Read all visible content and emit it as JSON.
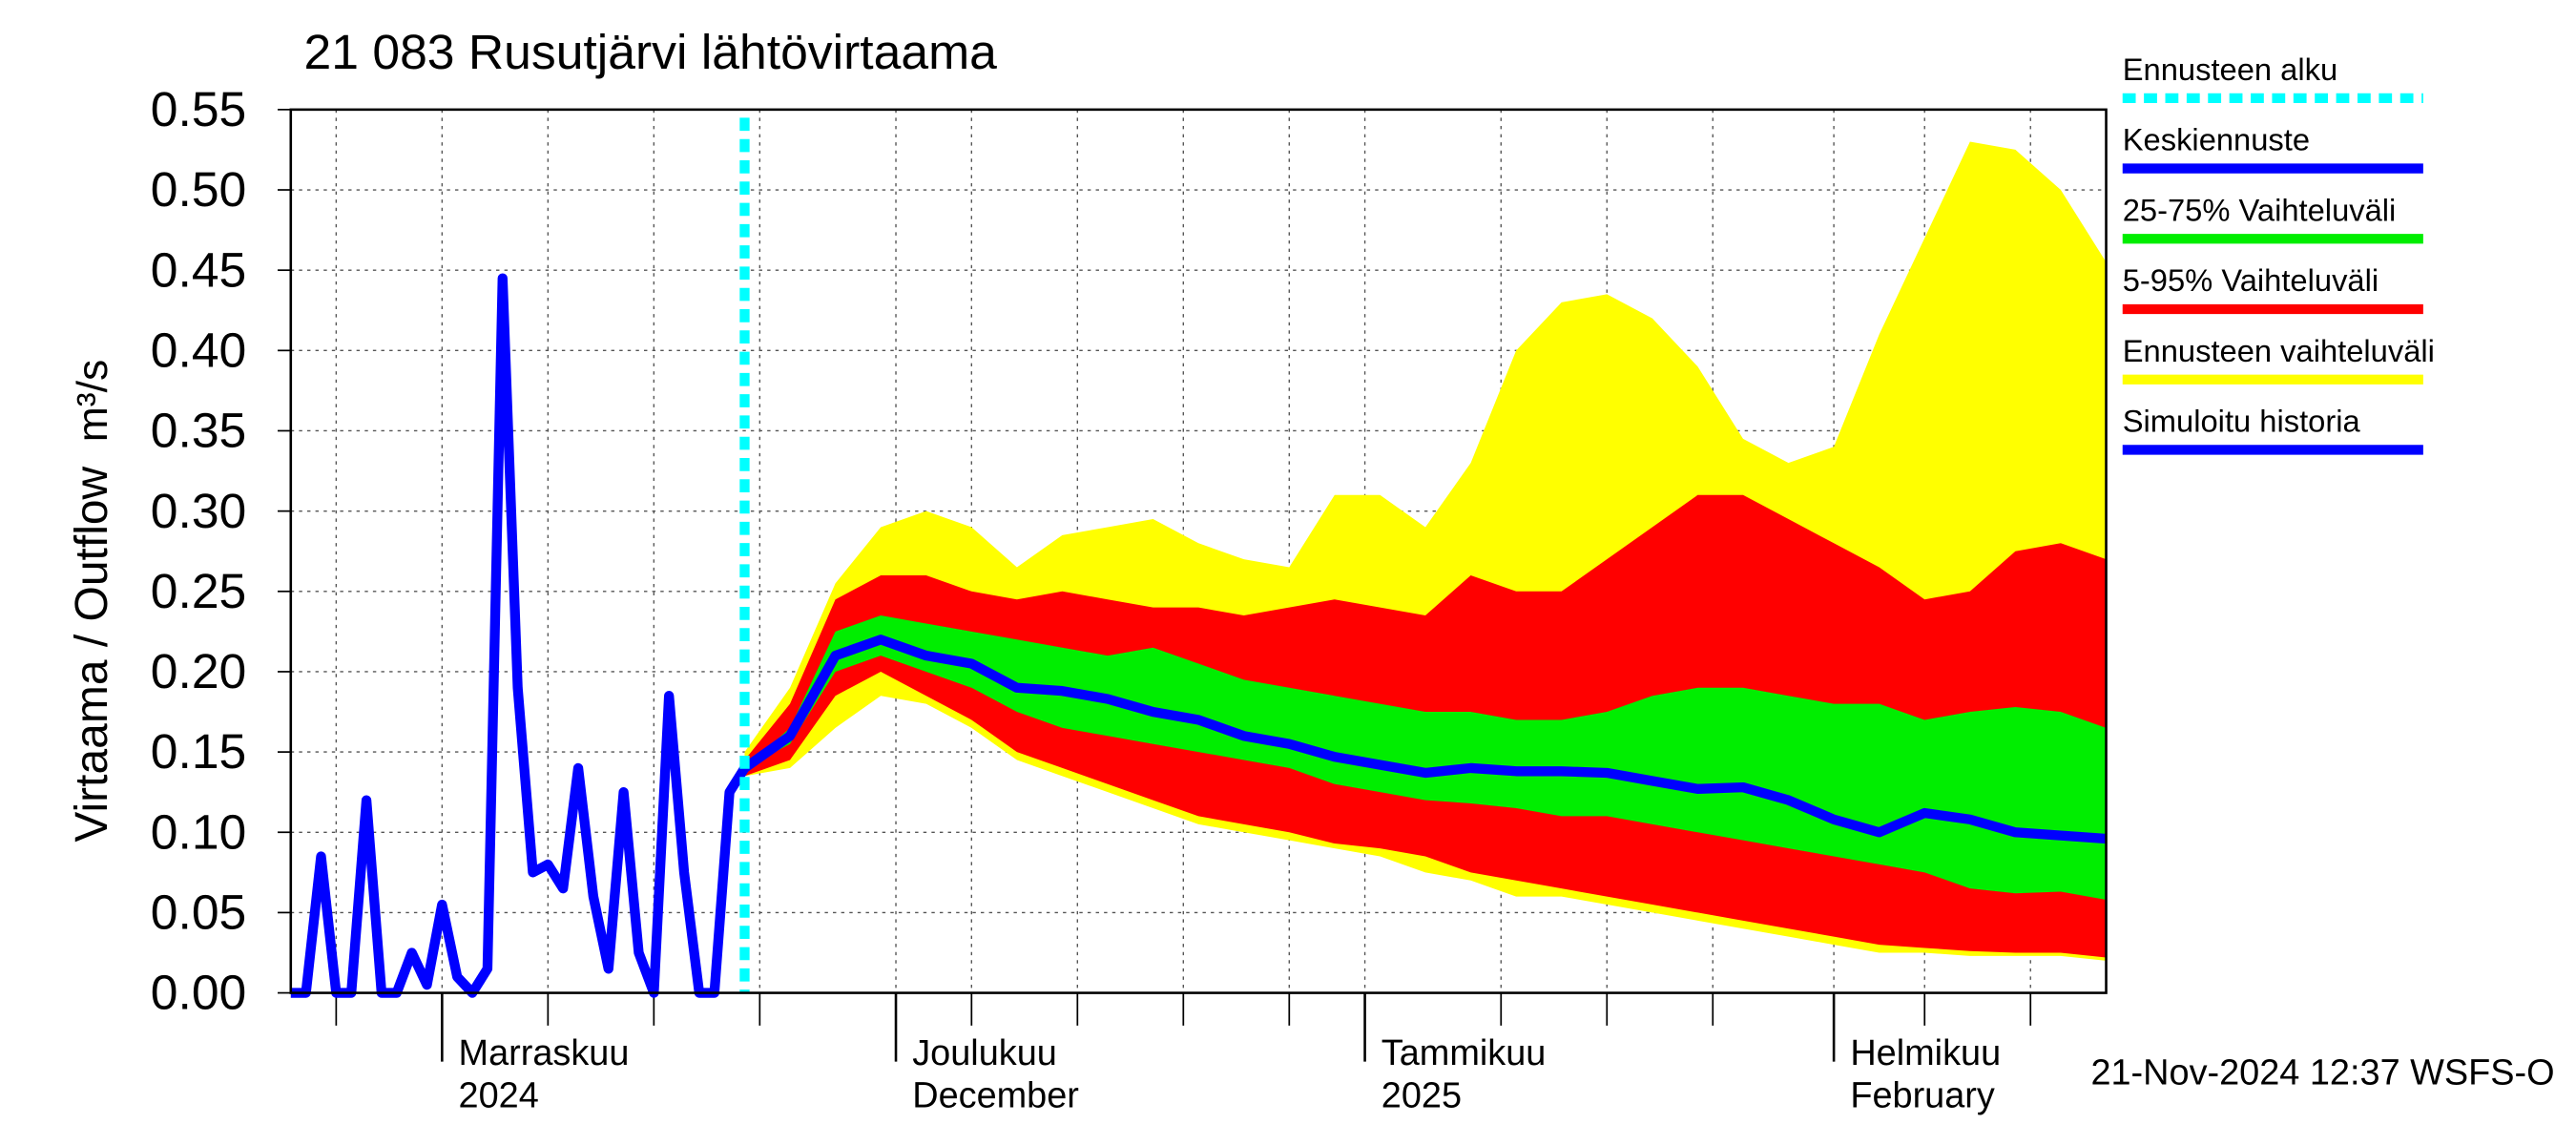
{
  "chart_data": {
    "type": "line",
    "title": "21 083 Rusutjärvi lähtövirtaama",
    "ylabel": "Virtaama / Outflow",
    "yunit": "m³/s",
    "footer": "21-Nov-2024 12:37 WSFS-O",
    "xlim": [
      0,
      120
    ],
    "ylim": [
      0,
      0.55
    ],
    "yticks": [
      {
        "value": 0,
        "label": "0.00"
      },
      {
        "value": 0.05,
        "label": "0.05"
      },
      {
        "value": 0.1,
        "label": "0.10"
      },
      {
        "value": 0.15,
        "label": "0.15"
      },
      {
        "value": 0.2,
        "label": "0.20"
      },
      {
        "value": 0.25,
        "label": "0.25"
      },
      {
        "value": 0.3,
        "label": "0.30"
      },
      {
        "value": 0.35,
        "label": "0.35"
      },
      {
        "value": 0.4,
        "label": "0.40"
      },
      {
        "value": 0.45,
        "label": "0.45"
      },
      {
        "value": 0.5,
        "label": "0.50"
      },
      {
        "value": 0.55,
        "label": "0.55"
      }
    ],
    "xticks": [
      {
        "value": 10,
        "label": "Marraskuu",
        "label2": "2024"
      },
      {
        "value": 40,
        "label": "Joulukuu",
        "label2": "December"
      },
      {
        "value": 71,
        "label": "Tammikuu",
        "label2": "2025"
      },
      {
        "value": 102,
        "label": "Helmikuu",
        "label2": "February"
      }
    ],
    "xgrid": [
      3,
      17,
      24,
      31,
      45,
      52,
      59,
      66,
      80,
      87,
      94,
      108,
      115
    ],
    "grid": true,
    "series": [
      {
        "name": "Ennusteen alku",
        "kind": "vline",
        "color": "#00ffff",
        "x": [
          30
        ]
      },
      {
        "name": "Keskiennuste",
        "kind": "line",
        "color": "#0000ff",
        "x": [
          30,
          33,
          36,
          39,
          42,
          45,
          48,
          51,
          54,
          57,
          60,
          63,
          66,
          69,
          72,
          75,
          78,
          81,
          84,
          87,
          90,
          93,
          96,
          99,
          102,
          105,
          108,
          111,
          114,
          117,
          120
        ],
        "values": [
          0.14,
          0.16,
          0.21,
          0.22,
          0.21,
          0.205,
          0.19,
          0.188,
          0.183,
          0.175,
          0.17,
          0.16,
          0.155,
          0.147,
          0.142,
          0.137,
          0.14,
          0.138,
          0.138,
          0.137,
          0.132,
          0.127,
          0.128,
          0.12,
          0.108,
          0.1,
          0.112,
          0.108,
          0.1,
          0.098,
          0.096
        ]
      },
      {
        "name": "25-75% Vaihteluväli",
        "kind": "band",
        "color": "#00ee00",
        "x": [
          30,
          33,
          36,
          39,
          42,
          45,
          48,
          51,
          54,
          57,
          60,
          63,
          66,
          69,
          72,
          75,
          78,
          81,
          84,
          87,
          90,
          93,
          96,
          99,
          102,
          105,
          108,
          111,
          114,
          117,
          120
        ],
        "low": [
          0.14,
          0.155,
          0.2,
          0.21,
          0.2,
          0.19,
          0.175,
          0.165,
          0.16,
          0.155,
          0.15,
          0.145,
          0.14,
          0.13,
          0.125,
          0.12,
          0.118,
          0.115,
          0.11,
          0.11,
          0.105,
          0.1,
          0.095,
          0.09,
          0.085,
          0.08,
          0.075,
          0.065,
          0.062,
          0.063,
          0.058
        ],
        "high": [
          0.14,
          0.165,
          0.225,
          0.235,
          0.23,
          0.225,
          0.22,
          0.215,
          0.21,
          0.215,
          0.205,
          0.195,
          0.19,
          0.185,
          0.18,
          0.175,
          0.175,
          0.17,
          0.17,
          0.175,
          0.185,
          0.19,
          0.19,
          0.185,
          0.18,
          0.18,
          0.17,
          0.175,
          0.178,
          0.175,
          0.165
        ]
      },
      {
        "name": "5-95% Vaihteluväli",
        "kind": "band",
        "color": "#ff0000",
        "x": [
          30,
          33,
          36,
          39,
          42,
          45,
          48,
          51,
          54,
          57,
          60,
          63,
          66,
          69,
          72,
          75,
          78,
          81,
          84,
          87,
          90,
          93,
          96,
          99,
          102,
          105,
          108,
          111,
          114,
          117,
          120
        ],
        "low": [
          0.135,
          0.145,
          0.185,
          0.2,
          0.185,
          0.17,
          0.15,
          0.14,
          0.13,
          0.12,
          0.11,
          0.105,
          0.1,
          0.093,
          0.09,
          0.085,
          0.075,
          0.07,
          0.065,
          0.06,
          0.055,
          0.05,
          0.045,
          0.04,
          0.035,
          0.03,
          0.028,
          0.026,
          0.025,
          0.025,
          0.022
        ],
        "high": [
          0.145,
          0.18,
          0.245,
          0.26,
          0.26,
          0.25,
          0.245,
          0.25,
          0.245,
          0.24,
          0.24,
          0.235,
          0.24,
          0.245,
          0.24,
          0.235,
          0.26,
          0.25,
          0.25,
          0.27,
          0.29,
          0.31,
          0.31,
          0.295,
          0.28,
          0.265,
          0.245,
          0.25,
          0.275,
          0.28,
          0.27
        ]
      },
      {
        "name": "Ennusteen vaihteluväli",
        "kind": "band",
        "color": "#ffff00",
        "x": [
          30,
          33,
          36,
          39,
          42,
          45,
          48,
          51,
          54,
          57,
          60,
          63,
          66,
          69,
          72,
          75,
          78,
          81,
          84,
          87,
          90,
          93,
          96,
          99,
          102,
          105,
          108,
          111,
          114,
          117,
          120
        ],
        "low": [
          0.135,
          0.14,
          0.165,
          0.185,
          0.18,
          0.165,
          0.145,
          0.135,
          0.125,
          0.115,
          0.105,
          0.1,
          0.095,
          0.09,
          0.085,
          0.075,
          0.07,
          0.06,
          0.06,
          0.055,
          0.05,
          0.045,
          0.04,
          0.035,
          0.03,
          0.025,
          0.025,
          0.023,
          0.023,
          0.023,
          0.02
        ],
        "high": [
          0.15,
          0.19,
          0.255,
          0.29,
          0.3,
          0.29,
          0.265,
          0.285,
          0.29,
          0.295,
          0.28,
          0.27,
          0.265,
          0.31,
          0.31,
          0.29,
          0.33,
          0.4,
          0.43,
          0.435,
          0.42,
          0.39,
          0.345,
          0.33,
          0.34,
          0.41,
          0.47,
          0.53,
          0.525,
          0.5,
          0.455
        ]
      },
      {
        "name": "Simuloitu historia",
        "kind": "line",
        "color": "#0000ff",
        "x": [
          0,
          1,
          2,
          3,
          4,
          5,
          6,
          7,
          8,
          9,
          10,
          11,
          12,
          13,
          14,
          15,
          16,
          17,
          18,
          19,
          20,
          21,
          22,
          23,
          24,
          25,
          26,
          27,
          28,
          29,
          30
        ],
        "values": [
          0,
          0,
          0.085,
          0,
          0,
          0.12,
          0,
          0,
          0.025,
          0.005,
          0.055,
          0.01,
          0,
          0.015,
          0.445,
          0.19,
          0.075,
          0.08,
          0.065,
          0.14,
          0.06,
          0.015,
          0.125,
          0.025,
          0,
          0.185,
          0.075,
          0,
          0,
          0.125,
          0.14
        ]
      }
    ]
  }
}
